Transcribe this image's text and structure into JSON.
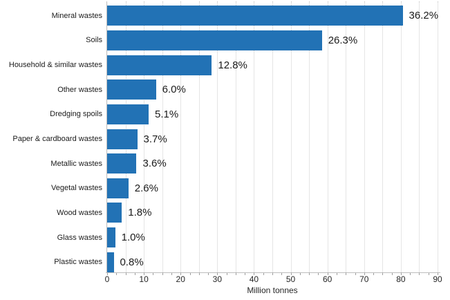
{
  "chart_data": {
    "type": "bar",
    "orientation": "horizontal",
    "title": "",
    "categories": [
      "Mineral wastes",
      "Soils",
      "Household & similar wastes",
      "Other wastes",
      "Dredging spoils",
      "Paper & cardboard wastes",
      "Metallic wastes",
      "Vegetal wastes",
      "Wood wastes",
      "Glass wastes",
      "Plastic wastes"
    ],
    "values": [
      80.5,
      58.5,
      28.5,
      13.3,
      11.3,
      8.2,
      8.0,
      5.8,
      4.0,
      2.2,
      1.8
    ],
    "value_labels": [
      "36.2%",
      "26.3%",
      "12.8%",
      "6.0%",
      "5.1%",
      "3.7%",
      "3.6%",
      "2.6%",
      "1.8%",
      "1.0%",
      "0.8%"
    ],
    "xlabel": "Million tonnes",
    "xlim": [
      0,
      90
    ],
    "x_tick_labels": [
      "0",
      "10",
      "20",
      "30",
      "40",
      "50",
      "60",
      "70",
      "80",
      "90"
    ],
    "x_major_tick_step": 10,
    "x_minor_tick_step": 2.5,
    "x_gridline_step": 5,
    "legend": "none",
    "grid": "vertical-dotted",
    "bar_color": "#2272b5",
    "grid_color": "#cbcbcb",
    "axis_color": "#bdbdbd",
    "text_color": "#1a1a1a"
  }
}
